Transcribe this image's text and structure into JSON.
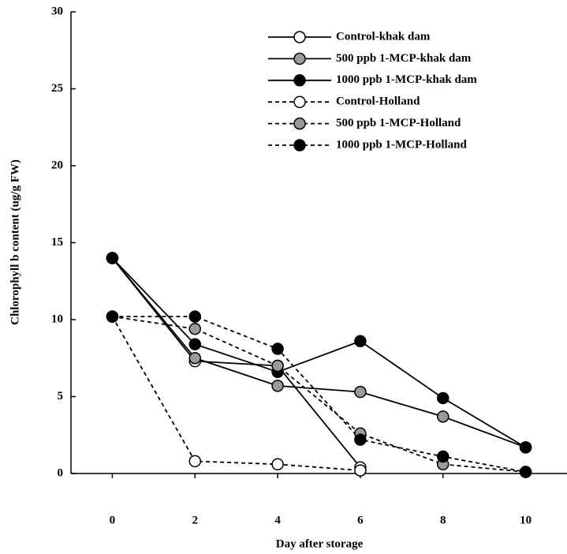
{
  "chart_data": {
    "type": "line",
    "x_label": "Day after storage",
    "y_label": "Chlorophyll b content (ug/g FW)",
    "x": [
      0,
      2,
      4,
      6,
      8,
      10
    ],
    "xlim": [
      -1,
      11
    ],
    "xticks": [
      0,
      2,
      4,
      6,
      8,
      10
    ],
    "ylim": [
      0,
      30
    ],
    "yticks": [
      0,
      5,
      10,
      15,
      20,
      25,
      30
    ],
    "grid": false,
    "legend": "upper right",
    "series": [
      {
        "name": "Control-khak dam",
        "color": "#000000",
        "marker_fill": "#ffffff",
        "line_style": "solid",
        "values": [
          14,
          7.3,
          7.0,
          0.4,
          null,
          null
        ]
      },
      {
        "name": "500 ppb 1-MCP-khak dam",
        "color": "#000000",
        "marker_fill": "#9a9a9a",
        "line_style": "solid",
        "values": [
          14,
          7.5,
          5.7,
          5.3,
          3.7,
          1.7
        ]
      },
      {
        "name": "1000 ppb 1-MCP-khak dam",
        "color": "#000000",
        "marker_fill": "#000000",
        "line_style": "solid",
        "values": [
          14,
          8.4,
          6.6,
          8.6,
          4.9,
          1.7
        ]
      },
      {
        "name": "Control-Holland",
        "color": "#000000",
        "marker_fill": "#ffffff",
        "line_style": "dashed",
        "values": [
          10.2,
          0.8,
          0.6,
          0.2,
          null,
          null
        ]
      },
      {
        "name": "500 ppb 1-MCP-Holland",
        "color": "#000000",
        "marker_fill": "#9a9a9a",
        "line_style": "dashed",
        "values": [
          10.2,
          9.4,
          7.0,
          2.6,
          0.6,
          0.1
        ]
      },
      {
        "name": "1000 ppb 1-MCP-Holland",
        "color": "#000000",
        "marker_fill": "#000000",
        "line_style": "dashed",
        "values": [
          10.2,
          10.2,
          8.1,
          2.2,
          1.1,
          0.1
        ]
      }
    ]
  }
}
